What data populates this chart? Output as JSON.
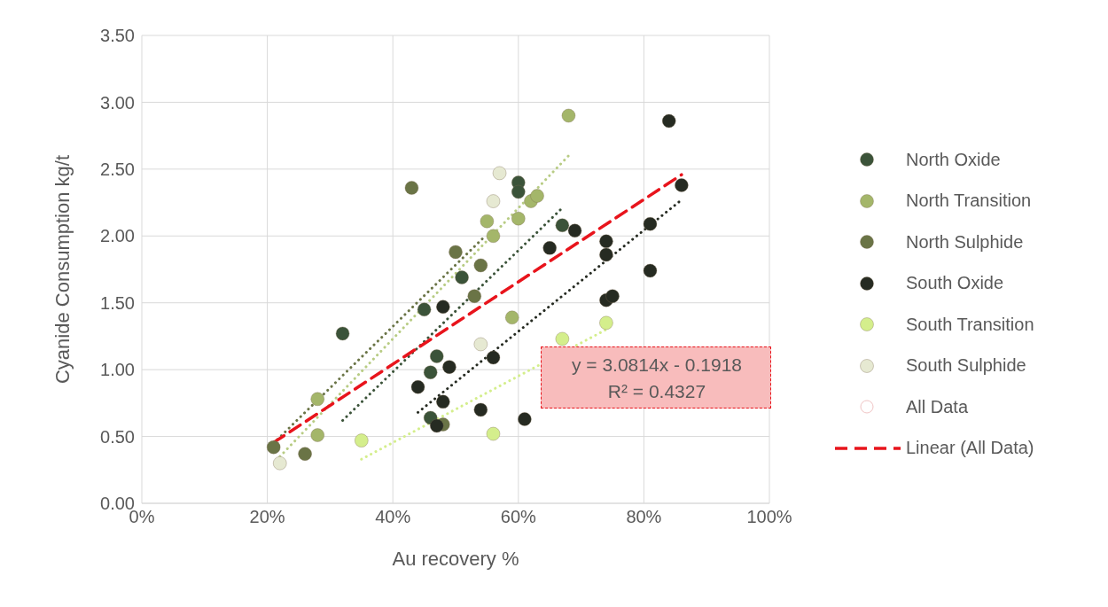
{
  "chart_data": {
    "type": "scatter",
    "xlabel": "Au recovery %",
    "ylabel": "Cyanide Consumption kg/t",
    "xlim": [
      0,
      100
    ],
    "xticks": [
      {
        "value": 0,
        "label": "0%"
      },
      {
        "value": 20,
        "label": "20%"
      },
      {
        "value": 40,
        "label": "40%"
      },
      {
        "value": 60,
        "label": "60%"
      },
      {
        "value": 80,
        "label": "80%"
      },
      {
        "value": 100,
        "label": "100%"
      }
    ],
    "ylim": [
      0,
      3.5
    ],
    "yticks": [
      {
        "value": 0,
        "label": "0.00"
      },
      {
        "value": 0.5,
        "label": "0.50"
      },
      {
        "value": 1,
        "label": "1.00"
      },
      {
        "value": 1.5,
        "label": "1.50"
      },
      {
        "value": 2,
        "label": "2.00"
      },
      {
        "value": 2.5,
        "label": "2.50"
      },
      {
        "value": 3,
        "label": "3.00"
      },
      {
        "value": 3.5,
        "label": "3.50"
      }
    ],
    "grid": true,
    "legend": "right",
    "marker": "circle",
    "annotations": [
      "y = 3.0814x - 0.1918",
      "R² = 0.4327"
    ],
    "series": [
      {
        "name": "North Oxide",
        "color": "#3b5339",
        "x": [
          32,
          45,
          47,
          46,
          46,
          60,
          60,
          51,
          67
        ],
        "values": [
          1.27,
          1.45,
          1.1,
          0.98,
          0.64,
          2.4,
          2.33,
          1.69,
          2.08
        ]
      },
      {
        "name": "North Transition",
        "color": "#a4b66a",
        "x": [
          28,
          28,
          55,
          56,
          60,
          62,
          63,
          59,
          68
        ],
        "values": [
          0.78,
          0.51,
          2.11,
          2.0,
          2.13,
          2.26,
          2.3,
          1.39,
          2.9
        ]
      },
      {
        "name": "North Sulphide",
        "color": "#6a7446",
        "x": [
          21,
          26,
          43,
          50,
          54,
          53,
          48
        ],
        "values": [
          0.42,
          0.37,
          2.36,
          1.88,
          1.78,
          1.55,
          0.59
        ]
      },
      {
        "name": "South Oxide",
        "color": "#262b22",
        "x": [
          44,
          48,
          48,
          49,
          54,
          56,
          61,
          65,
          69,
          74,
          74,
          74,
          75,
          81,
          81,
          84,
          86,
          47
        ],
        "values": [
          0.87,
          1.47,
          0.76,
          1.02,
          0.7,
          1.09,
          0.63,
          1.91,
          2.04,
          1.96,
          1.86,
          1.52,
          1.55,
          2.09,
          1.74,
          2.86,
          2.38,
          0.58
        ]
      },
      {
        "name": "South Transition",
        "color": "#d4ee8c",
        "x": [
          35,
          56,
          67,
          74
        ],
        "values": [
          0.47,
          0.52,
          1.23,
          1.35
        ]
      },
      {
        "name": "South Sulphide",
        "color": "#e6e9d2",
        "x": [
          22,
          54,
          56,
          57
        ],
        "values": [
          0.3,
          1.19,
          2.26,
          2.47
        ]
      },
      {
        "name": "All Data",
        "color": "#f0c4c4"
      },
      {
        "type": "line",
        "color": "#6a7446",
        "line_style": "dotted",
        "marker": "none",
        "x": [
          21,
          54.5
        ],
        "values": [
          0.45,
          1.99
        ]
      },
      {
        "type": "line",
        "color": "#b8cc84",
        "line_style": "dotted",
        "marker": "none",
        "x": [
          22,
          68
        ],
        "values": [
          0.35,
          2.6
        ]
      },
      {
        "type": "line",
        "color": "#3b5339",
        "line_style": "dotted",
        "marker": "none",
        "x": [
          32,
          67
        ],
        "values": [
          0.62,
          2.21
        ]
      },
      {
        "type": "line",
        "color": "#262b22",
        "line_style": "dotted",
        "marker": "none",
        "x": [
          44,
          86
        ],
        "values": [
          0.68,
          2.27
        ]
      },
      {
        "type": "line",
        "color": "#d4ee8c",
        "line_style": "dotted",
        "marker": "none",
        "x": [
          35,
          74
        ],
        "values": [
          0.33,
          1.3
        ]
      },
      {
        "name": "Linear (All Data)",
        "type": "line",
        "color": "#e8141c",
        "line_style": "dashed",
        "marker": "none",
        "x": [
          21,
          86
        ],
        "values": [
          0.455,
          2.458
        ]
      }
    ]
  }
}
